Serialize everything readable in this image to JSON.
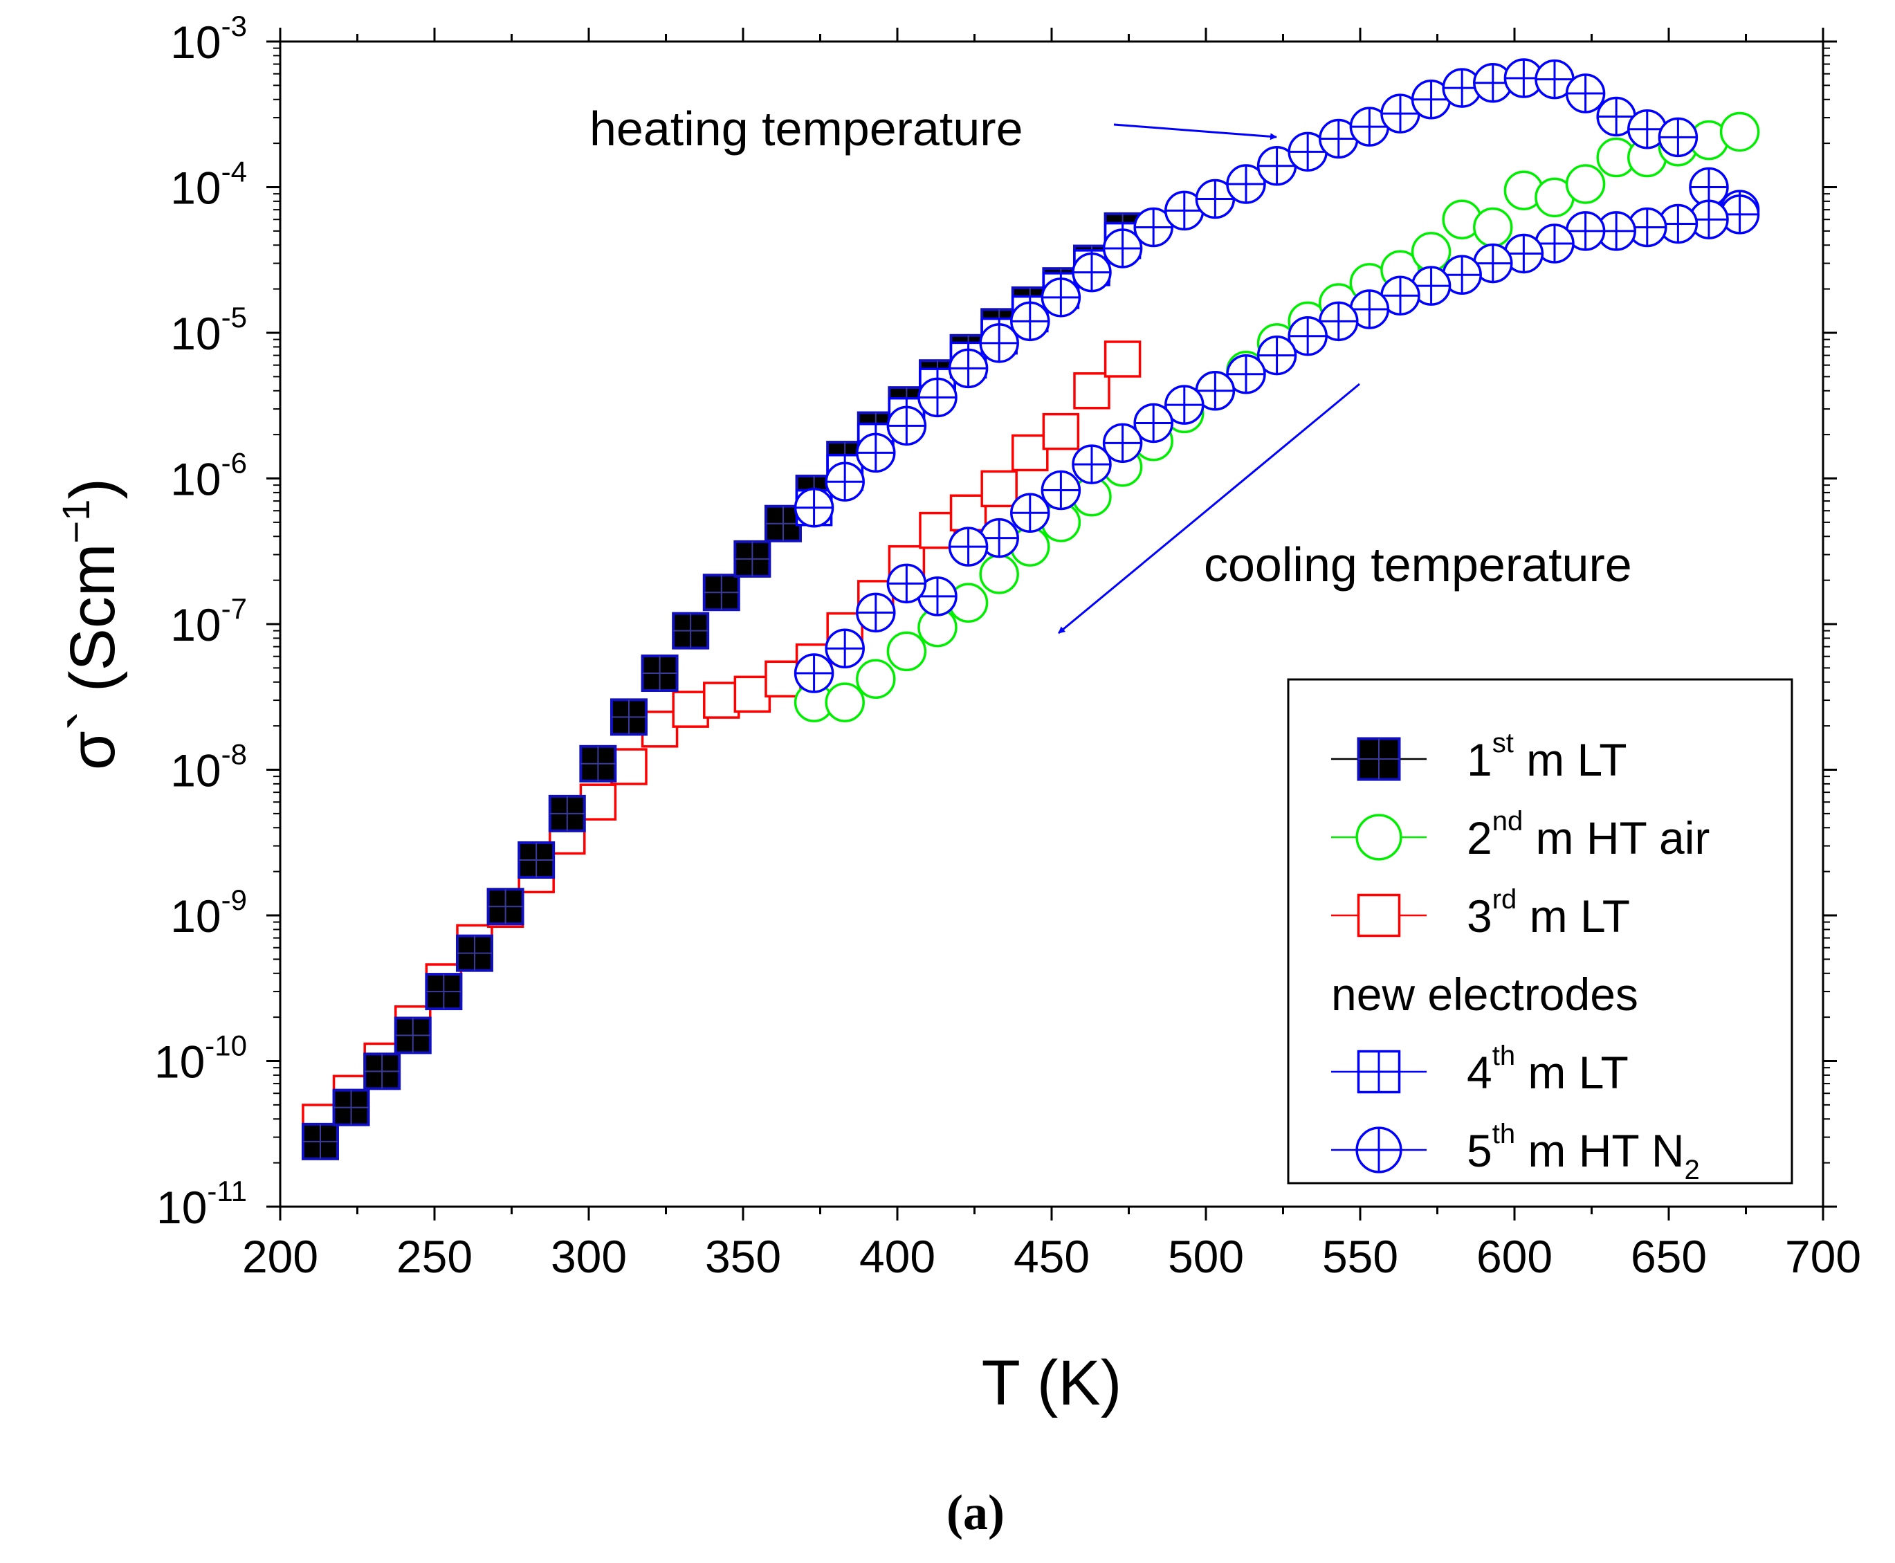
{
  "chart_data": {
    "type": "scatter",
    "xlabel": "T (K)",
    "ylabel": {
      "base": "σ` (Scm",
      "sup": "−1",
      "close": ")"
    },
    "xlim": [
      200,
      700
    ],
    "ylim_log10": [
      -11,
      -3
    ],
    "yscale": "log",
    "x_ticks": [
      200,
      250,
      300,
      350,
      400,
      450,
      500,
      550,
      600,
      650,
      700
    ],
    "y_ticks": [
      {
        "exp": -3,
        "base": "10",
        "sup": "-3"
      },
      {
        "exp": -4,
        "base": "10",
        "sup": "-4"
      },
      {
        "exp": -5,
        "base": "10",
        "sup": "-5"
      },
      {
        "exp": -6,
        "base": "10",
        "sup": "-6"
      },
      {
        "exp": -7,
        "base": "10",
        "sup": "-7"
      },
      {
        "exp": -8,
        "base": "10",
        "sup": "-8"
      },
      {
        "exp": -9,
        "base": "10",
        "sup": "-9"
      },
      {
        "exp": -10,
        "base": "10",
        "sup": "-10"
      },
      {
        "exp": -11,
        "base": "10",
        "sup": "-11"
      }
    ],
    "caption": "(a)",
    "annotations": [
      {
        "text": "heating temperature",
        "color": "#0000ff"
      },
      {
        "text": "cooling temperature",
        "color": "#0000ff"
      }
    ],
    "legend": {
      "position": "bottom-right",
      "entries": [
        {
          "series": "s1",
          "num": "1",
          "sup": "st",
          "text": " m LT",
          "sub": ""
        },
        {
          "series": "s2",
          "num": "2",
          "sup": "nd",
          "text": " m HT air",
          "sub": ""
        },
        {
          "series": "s3",
          "num": "3",
          "sup": "rd",
          "text": " m LT",
          "sub": ""
        },
        {
          "series": null,
          "plain": "new electrodes"
        },
        {
          "series": "s4",
          "num": "4",
          "sup": "th",
          "text": " m LT",
          "sub": ""
        },
        {
          "series": "s5",
          "num": "5",
          "sup": "th",
          "text": " m HT N",
          "sub": "2"
        }
      ]
    },
    "series": [
      {
        "id": "s3",
        "name": "3rd m LT",
        "marker": "open-square",
        "color": "#ff0000",
        "x": [
          213,
          223,
          233,
          243,
          253,
          263,
          273,
          283,
          293,
          303,
          313,
          323,
          333,
          343,
          353,
          363,
          373,
          383,
          393,
          403,
          413,
          423,
          433,
          443,
          453,
          463,
          473
        ],
        "y": [
          3.8e-11,
          6e-11,
          1e-10,
          1.8e-10,
          3.5e-10,
          6.5e-10,
          1.1e-09,
          1.9e-09,
          3.5e-09,
          6e-09,
          1.05e-08,
          1.9e-08,
          2.6e-08,
          3e-08,
          3.3e-08,
          4.2e-08,
          5.5e-08,
          9e-08,
          1.5e-07,
          2.6e-07,
          4.4e-07,
          5.8e-07,
          8.5e-07,
          1.5e-06,
          2.1e-06,
          4e-06,
          6.6e-06
        ]
      },
      {
        "id": "s1",
        "name": "1st m LT",
        "marker": "filled-square",
        "color": "#000000",
        "x": [
          213,
          223,
          233,
          243,
          253,
          263,
          273,
          283,
          293,
          303,
          313,
          323,
          333,
          343,
          353,
          363,
          373,
          383,
          393,
          403,
          413,
          423,
          433,
          443,
          453,
          463,
          473
        ],
        "y": [
          2.8e-11,
          4.8e-11,
          8.5e-11,
          1.5e-10,
          3e-10,
          5.5e-10,
          1.15e-09,
          2.4e-09,
          5e-09,
          1.1e-08,
          2.3e-08,
          4.6e-08,
          9e-08,
          1.65e-07,
          2.8e-07,
          4.9e-07,
          7.9e-07,
          1.35e-06,
          2.15e-06,
          3.2e-06,
          4.9e-06,
          7.3e-06,
          1.1e-05,
          1.55e-05,
          2.1e-05,
          3e-05,
          5e-05
        ]
      },
      {
        "id": "s2",
        "name": "2nd m HT air",
        "marker": "open-circle",
        "color": "#00ee00",
        "x": [
          373,
          383,
          393,
          403,
          413,
          423,
          433,
          443,
          453,
          463,
          473,
          483,
          493,
          503,
          513,
          523,
          533,
          543,
          553,
          563,
          573,
          583,
          593,
          603,
          613,
          623,
          633,
          643,
          653,
          663,
          673
        ],
        "y": [
          2.9e-08,
          2.9e-08,
          4.2e-08,
          6.5e-08,
          9.5e-08,
          1.4e-07,
          2.2e-07,
          3.4e-07,
          5e-07,
          7.5e-07,
          1.2e-06,
          1.8e-06,
          2.8e-06,
          4e-06,
          5.5e-06,
          8.5e-06,
          1.2e-05,
          1.6e-05,
          2.2e-05,
          2.7e-05,
          3.6e-05,
          6e-05,
          5.3e-05,
          9.5e-05,
          8.5e-05,
          0.000105,
          0.00016,
          0.00016,
          0.00019,
          0.00021,
          0.00024
        ]
      },
      {
        "id": "s4",
        "name": "4th m LT",
        "marker": "open-square-cross",
        "color": "#0000ff",
        "x": [
          373,
          383,
          393,
          403,
          413,
          423,
          433,
          443,
          453,
          463,
          473
        ],
        "y": [
          6.3e-07,
          1.1e-06,
          1.8e-06,
          2.7e-06,
          4.3e-06,
          6.5e-06,
          9.5e-06,
          1.35e-05,
          1.95e-05,
          2.8e-05,
          4.3e-05
        ]
      },
      {
        "id": "s5a",
        "name": "5th m HT N2 (heating)",
        "marker": "open-circle-cross",
        "color": "#0000ff",
        "x": [
          373,
          383,
          393,
          403,
          413,
          423,
          433,
          443,
          453,
          463,
          473,
          483,
          493,
          503,
          513,
          523,
          533,
          543,
          553,
          563,
          573,
          583,
          593,
          603,
          613,
          623,
          633,
          643,
          653,
          663,
          673
        ],
        "y": [
          6.3e-07,
          9.5e-07,
          1.5e-06,
          2.3e-06,
          3.6e-06,
          5.7e-06,
          8.5e-06,
          1.2e-05,
          1.75e-05,
          2.6e-05,
          3.8e-05,
          5.3e-05,
          6.9e-05,
          8.3e-05,
          0.000105,
          0.00014,
          0.000175,
          0.000215,
          0.00026,
          0.00032,
          0.0004,
          0.00048,
          0.00052,
          0.00056,
          0.00055,
          0.00044,
          0.000305,
          0.00025,
          0.00022,
          0.0001,
          7e-05
        ]
      },
      {
        "id": "s5b",
        "name": "5th m HT N2 (cooling)",
        "marker": "open-circle-cross",
        "color": "#0000ff",
        "x": [
          673,
          663,
          653,
          643,
          633,
          623,
          613,
          603,
          593,
          583,
          573,
          563,
          553,
          543,
          533,
          523,
          513,
          503,
          493,
          483,
          473,
          463,
          453,
          443,
          433,
          423,
          413,
          403,
          393,
          383,
          373
        ],
        "y": [
          6.5e-05,
          6e-05,
          5.6e-05,
          5.3e-05,
          5e-05,
          5e-05,
          4.1e-05,
          3.5e-05,
          3e-05,
          2.5e-05,
          2.1e-05,
          1.8e-05,
          1.45e-05,
          1.2e-05,
          9.5e-06,
          7e-06,
          5.2e-06,
          4e-06,
          3.2e-06,
          2.4e-06,
          1.75e-06,
          1.25e-06,
          8.3e-07,
          5.8e-07,
          3.9e-07,
          3.4e-07,
          1.55e-07,
          1.9e-07,
          1.2e-07,
          6.8e-08,
          4.6e-08
        ]
      }
    ]
  }
}
